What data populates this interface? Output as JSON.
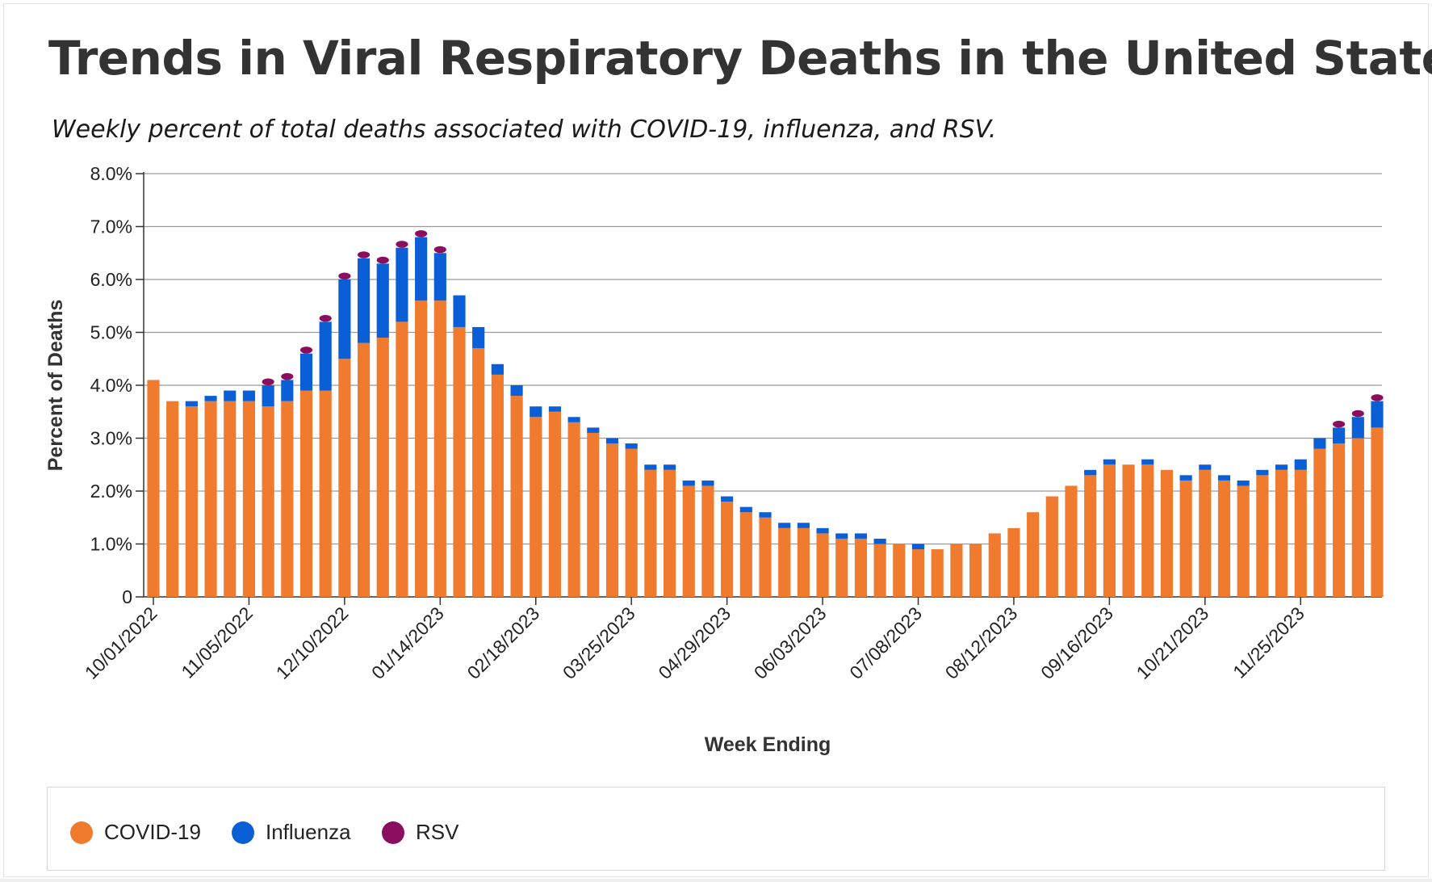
{
  "title": "Trends in Viral Respiratory Deaths in the United States",
  "subtitle": "Weekly percent of total deaths associated with COVID-19, influenza, and RSV.",
  "legend": [
    {
      "label": "COVID-19",
      "color": "#f07a2d"
    },
    {
      "label": "Influenza",
      "color": "#0a5fd6"
    },
    {
      "label": "RSV",
      "color": "#8b0d5e"
    }
  ],
  "chart_data": {
    "type": "bar",
    "stacked": true,
    "xlabel": "Week Ending",
    "ylabel": "Percent of Deaths",
    "ylim": [
      0,
      8
    ],
    "yticks": [
      "0",
      "1.0%",
      "2.0%",
      "3.0%",
      "4.0%",
      "5.0%",
      "6.0%",
      "7.0%",
      "8.0%"
    ],
    "grid": true,
    "legend_position": "bottom",
    "first_week": "10/01/2022",
    "week_count": 65,
    "xtick_labels": [
      "10/01/2022",
      "11/05/2022",
      "12/10/2022",
      "01/14/2023",
      "02/18/2023",
      "03/25/2023",
      "04/29/2023",
      "06/03/2023",
      "07/08/2023",
      "08/12/2023",
      "09/16/2023",
      "10/21/2023",
      "11/25/2023"
    ],
    "series": [
      {
        "name": "COVID-19",
        "color": "#f07a2d",
        "values": [
          4.1,
          3.7,
          3.6,
          3.7,
          3.7,
          3.7,
          3.6,
          3.7,
          3.9,
          3.9,
          4.5,
          4.8,
          4.9,
          5.2,
          5.6,
          5.6,
          5.1,
          4.7,
          4.2,
          3.8,
          3.4,
          3.5,
          3.3,
          3.1,
          2.9,
          2.8,
          2.4,
          2.4,
          2.1,
          2.1,
          1.8,
          1.6,
          1.5,
          1.3,
          1.3,
          1.2,
          1.1,
          1.1,
          1.0,
          1.0,
          0.9,
          0.9,
          1.0,
          1.0,
          1.2,
          1.3,
          1.6,
          1.9,
          2.1,
          2.3,
          2.5,
          2.5,
          2.5,
          2.4,
          2.2,
          2.4,
          2.2,
          2.1,
          2.3,
          2.4,
          2.4,
          2.8,
          2.9,
          3.0,
          3.2
        ]
      },
      {
        "name": "Influenza",
        "color": "#0a5fd6",
        "values": [
          0,
          0,
          0.1,
          0.1,
          0.2,
          0.2,
          0.4,
          0.4,
          0.7,
          1.3,
          1.5,
          1.6,
          1.4,
          1.4,
          1.2,
          0.9,
          0.6,
          0.4,
          0.2,
          0.2,
          0.2,
          0.1,
          0.1,
          0.1,
          0.1,
          0.1,
          0.1,
          0.1,
          0.1,
          0.1,
          0.1,
          0.1,
          0.1,
          0.1,
          0.1,
          0.1,
          0.1,
          0.1,
          0.1,
          0,
          0.1,
          0,
          0,
          0,
          0,
          0,
          0,
          0,
          0,
          0.1,
          0.1,
          0,
          0.1,
          0,
          0.1,
          0.1,
          0.1,
          0.1,
          0.1,
          0.1,
          0.2,
          0.2,
          0.3,
          0.4,
          0.5
        ]
      },
      {
        "name": "RSV",
        "color": "#8b0d5e",
        "values": [
          0,
          0,
          0,
          0,
          0,
          0,
          0.1,
          0.1,
          0.1,
          0.1,
          0.1,
          0.1,
          0.1,
          0.1,
          0.1,
          0.1,
          0,
          0,
          0,
          0,
          0,
          0,
          0,
          0,
          0,
          0,
          0,
          0,
          0,
          0,
          0,
          0,
          0,
          0,
          0,
          0,
          0,
          0,
          0,
          0,
          0,
          0,
          0,
          0,
          0,
          0,
          0,
          0,
          0,
          0,
          0,
          0,
          0,
          0,
          0,
          0,
          0,
          0,
          0,
          0,
          0,
          0,
          0.1,
          0.1,
          0.1
        ]
      }
    ]
  }
}
